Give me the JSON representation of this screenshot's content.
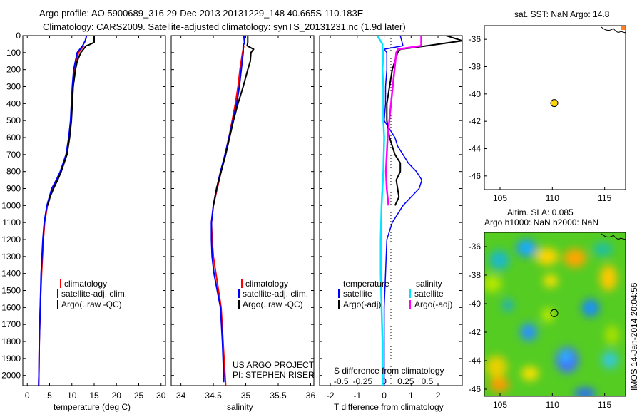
{
  "header": {
    "line1": "Argo profile: AO 5900689_316 29-Dec-2013 20131229_148 40.665S 110.183E",
    "line2": "Climatology: CARS2009. Satellite-adjusted climatology: synTS_20131231.nc (1.9d later)"
  },
  "watermark": "IMOS 14-Jan-2014 20:04:56",
  "colors": {
    "climatology": "#ff0000",
    "satellite": "#0000ff",
    "argo": "#000000",
    "sal_satellite": "#00e5ff",
    "sal_argo": "#ff00ff",
    "marker": "#ffd700"
  },
  "depth_axis": {
    "ticks": [
      "0",
      "100",
      "200",
      "300",
      "400",
      "500",
      "600",
      "700",
      "800",
      "900",
      "1000",
      "1100",
      "1200",
      "1300",
      "1400",
      "1500",
      "1600",
      "1700",
      "1800",
      "1900",
      "2000"
    ]
  },
  "chart_data": [
    {
      "type": "line",
      "id": "temperature",
      "xlabel": "temperature (deg C)",
      "xlim": [
        -1,
        31
      ],
      "ylim": [
        2060,
        0
      ],
      "xticks": [
        "0",
        "5",
        "10",
        "15",
        "20",
        "25",
        "30"
      ],
      "legend": [
        "climatology",
        "satellite-adj. clim.",
        "Argo(..raw -QC)"
      ],
      "legend_position": "lower-middle",
      "series": [
        {
          "name": "climatology",
          "depth": [
            60,
            100,
            200,
            300,
            400,
            500,
            600,
            700,
            800,
            850,
            900,
            1000,
            1100,
            1200,
            1400,
            1600,
            1800,
            2000,
            2060
          ],
          "values": [
            12.7,
            11.5,
            10.6,
            10.2,
            10.0,
            9.8,
            9.4,
            8.8,
            7.5,
            6.6,
            5.6,
            4.5,
            3.9,
            3.6,
            3.2,
            2.9,
            2.7,
            2.6,
            2.55
          ]
        },
        {
          "name": "satellite-adj. clim.",
          "depth": [
            0,
            30,
            60,
            100,
            200,
            300,
            400,
            500,
            600,
            700,
            800,
            850,
            900,
            1000,
            1100,
            1200,
            1400,
            1600,
            1800,
            2000,
            2060
          ],
          "values": [
            13.3,
            13.0,
            12.4,
            11.2,
            10.4,
            10.1,
            9.9,
            9.7,
            9.3,
            8.7,
            7.4,
            6.5,
            5.5,
            4.4,
            3.8,
            3.5,
            3.1,
            2.9,
            2.7,
            2.6,
            2.55
          ]
        },
        {
          "name": "Argo(..raw -QC)",
          "depth": [
            0,
            40,
            55,
            60,
            100,
            150,
            200,
            300,
            400,
            500,
            600,
            700,
            800,
            850,
            900,
            950,
            1000
          ],
          "values": [
            15.0,
            15.0,
            13.8,
            13.2,
            12.0,
            11.2,
            10.8,
            10.3,
            10.1,
            9.9,
            9.5,
            8.9,
            7.6,
            6.8,
            5.9,
            5.1,
            4.6
          ]
        }
      ]
    },
    {
      "type": "line",
      "id": "salinity",
      "xlabel": "salinity",
      "xlim": [
        33.85,
        36.05
      ],
      "ylim": [
        2060,
        0
      ],
      "xticks": [
        "34",
        "34.5",
        "35",
        "35.5",
        "36"
      ],
      "legend": [
        "climatology",
        "satellite-adj. clim.",
        "Argo(..raw -QC)"
      ],
      "legend_position": "lower-middle",
      "annotation": [
        "US ARGO PROJECT",
        "PI: STEPHEN RISER"
      ],
      "series": [
        {
          "name": "climatology",
          "depth": [
            60,
            100,
            200,
            300,
            400,
            500,
            600,
            700,
            800,
            900,
            1000,
            1100,
            1200,
            1300,
            1400,
            1500,
            1600,
            1800,
            2000,
            2060
          ],
          "values": [
            34.97,
            34.95,
            34.91,
            34.88,
            34.84,
            34.79,
            34.74,
            34.68,
            34.62,
            34.56,
            34.5,
            34.47,
            34.48,
            34.5,
            34.54,
            34.58,
            34.62,
            34.65,
            34.68,
            34.69
          ]
        },
        {
          "name": "satellite-adj. clim.",
          "depth": [
            0,
            40,
            60,
            100,
            200,
            300,
            400,
            500,
            600,
            700,
            800,
            900,
            1000,
            1100,
            1200,
            1300,
            1400,
            1500,
            1600,
            1800,
            2000,
            2040
          ],
          "values": [
            34.97,
            34.98,
            34.96,
            34.96,
            34.93,
            34.9,
            34.86,
            34.8,
            34.74,
            34.68,
            34.61,
            34.55,
            34.5,
            34.47,
            34.47,
            34.48,
            34.51,
            34.56,
            34.61,
            34.64,
            34.66,
            34.66
          ]
        },
        {
          "name": "Argo(..raw -QC)",
          "depth": [
            0,
            40,
            60,
            80,
            100,
            150,
            200,
            300,
            400,
            500,
            600,
            700,
            800,
            900,
            1000
          ],
          "values": [
            35.03,
            35.03,
            35.02,
            35.12,
            35.08,
            35.07,
            35.03,
            34.96,
            34.88,
            34.81,
            34.75,
            34.69,
            34.62,
            34.55,
            34.5
          ]
        }
      ]
    },
    {
      "type": "line",
      "id": "difference",
      "xlabel": "T difference from climatology",
      "xlabel_top": "S difference from climatology",
      "xlim": [
        -2.4,
        2.9
      ],
      "ylim": [
        2060,
        0
      ],
      "xticks": [
        "-2",
        "-1",
        "0",
        "1",
        "2"
      ],
      "xticks_top": [
        "-0.5",
        "-0.25",
        "0",
        "0.25",
        "0.5"
      ],
      "legend_temperature_title": "temperature",
      "legend_salinity_title": "salinity",
      "legend_temperature": [
        "satellite",
        "Argo(-adj)"
      ],
      "legend_salinity": [
        "satellite",
        "Argo(-adj)"
      ],
      "series": [
        {
          "name": "temperature satellite",
          "depth": [
            0,
            60,
            80,
            100,
            200,
            300,
            400,
            500,
            600,
            650,
            700,
            750,
            800,
            850,
            900,
            950,
            1000,
            1100,
            1200,
            1400,
            1600,
            1800,
            2000,
            2060
          ],
          "values": [
            0.6,
            0.7,
            0.0,
            0.1,
            0.1,
            0.05,
            0.05,
            0.0,
            0.4,
            0.5,
            0.7,
            0.9,
            1.2,
            1.4,
            1.3,
            1.0,
            0.7,
            0.3,
            0.1,
            0.05,
            0.0,
            0.0,
            0.0,
            0.0
          ]
        },
        {
          "name": "temperature Argo(-adj)",
          "depth": [
            0,
            30,
            60,
            80,
            100,
            200,
            300,
            400,
            500,
            600,
            700,
            750,
            800,
            850,
            900,
            950,
            1000
          ],
          "values": [
            2.3,
            2.9,
            1.6,
            0.6,
            0.5,
            0.3,
            0.2,
            0.1,
            0.1,
            0.2,
            0.4,
            0.6,
            0.6,
            0.45,
            0.5,
            0.55,
            0.4
          ]
        },
        {
          "name": "salinity satellite",
          "depth": [
            0,
            50,
            80,
            100,
            200,
            300,
            400,
            500,
            600,
            800,
            1000,
            1200,
            1400,
            1600,
            1800,
            2000,
            2060
          ],
          "values": [
            -0.08,
            -0.02,
            -0.02,
            -0.01,
            -0.02,
            -0.01,
            -0.01,
            -0.01,
            0.0,
            -0.01,
            -0.03,
            -0.04,
            -0.04,
            -0.03,
            -0.02,
            -0.02,
            -0.02
          ]
        },
        {
          "name": "salinity Argo(-adj)",
          "depth": [
            0,
            30,
            60,
            80,
            100,
            200,
            300,
            400,
            500,
            600,
            700,
            800,
            900,
            1000
          ],
          "values": [
            0.43,
            0.43,
            0.43,
            0.16,
            0.14,
            0.12,
            0.1,
            0.08,
            0.06,
            0.04,
            0.03,
            0.02,
            0.03,
            0.05
          ]
        }
      ]
    },
    {
      "type": "scatter",
      "id": "sst-map",
      "title": "sat. SST: NaN Argo: 14.8",
      "xlim": [
        103.5,
        117
      ],
      "ylim": [
        -47,
        -35
      ],
      "xticks": [
        "105",
        "110",
        "115"
      ],
      "yticks": [
        "-36",
        "-38",
        "-40",
        "-42",
        "-44",
        "-46"
      ],
      "points": [
        {
          "lon": 110.183,
          "lat": -40.665
        }
      ]
    },
    {
      "type": "heatmap",
      "id": "sla-map",
      "title_line1": "Altim. SLA: 0.085",
      "title_line2": "Argo h1000: NaN h2000: NaN",
      "xlim": [
        103.5,
        117
      ],
      "ylim": [
        -46.5,
        -35
      ],
      "xticks": [
        "105",
        "110",
        "115"
      ],
      "yticks": [
        "-36",
        "-38",
        "-40",
        "-42",
        "-44",
        "-46"
      ],
      "points": [
        {
          "lon": 110.183,
          "lat": -40.665
        }
      ]
    }
  ]
}
